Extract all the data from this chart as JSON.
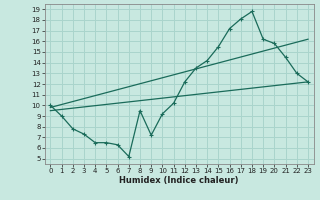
{
  "title": "",
  "xlabel": "Humidex (Indice chaleur)",
  "ylabel": "",
  "background_color": "#c8e8e0",
  "grid_color": "#aad4cc",
  "line_color": "#1a6b5a",
  "xlim": [
    -0.5,
    23.5
  ],
  "ylim": [
    4.5,
    19.5
  ],
  "xticks": [
    0,
    1,
    2,
    3,
    4,
    5,
    6,
    7,
    8,
    9,
    10,
    11,
    12,
    13,
    14,
    15,
    16,
    17,
    18,
    19,
    20,
    21,
    22,
    23
  ],
  "yticks": [
    5,
    6,
    7,
    8,
    9,
    10,
    11,
    12,
    13,
    14,
    15,
    16,
    17,
    18,
    19
  ],
  "line1_x": [
    0,
    1,
    2,
    3,
    4,
    5,
    6,
    7,
    8,
    9,
    10,
    11,
    12,
    13,
    14,
    15,
    16,
    17,
    18,
    19,
    20,
    21,
    22,
    23
  ],
  "line1_y": [
    10,
    9,
    7.8,
    7.3,
    6.5,
    6.5,
    6.3,
    5.2,
    9.5,
    7.2,
    9.2,
    10.2,
    12.2,
    13.5,
    14.2,
    15.5,
    17.2,
    18.1,
    18.8,
    16.2,
    15.8,
    14.5,
    13.0,
    12.2
  ],
  "line2_x": [
    0,
    23
  ],
  "line2_y": [
    9.8,
    16.2
  ],
  "line3_x": [
    0,
    23
  ],
  "line3_y": [
    9.5,
    12.2
  ],
  "marker": "+"
}
